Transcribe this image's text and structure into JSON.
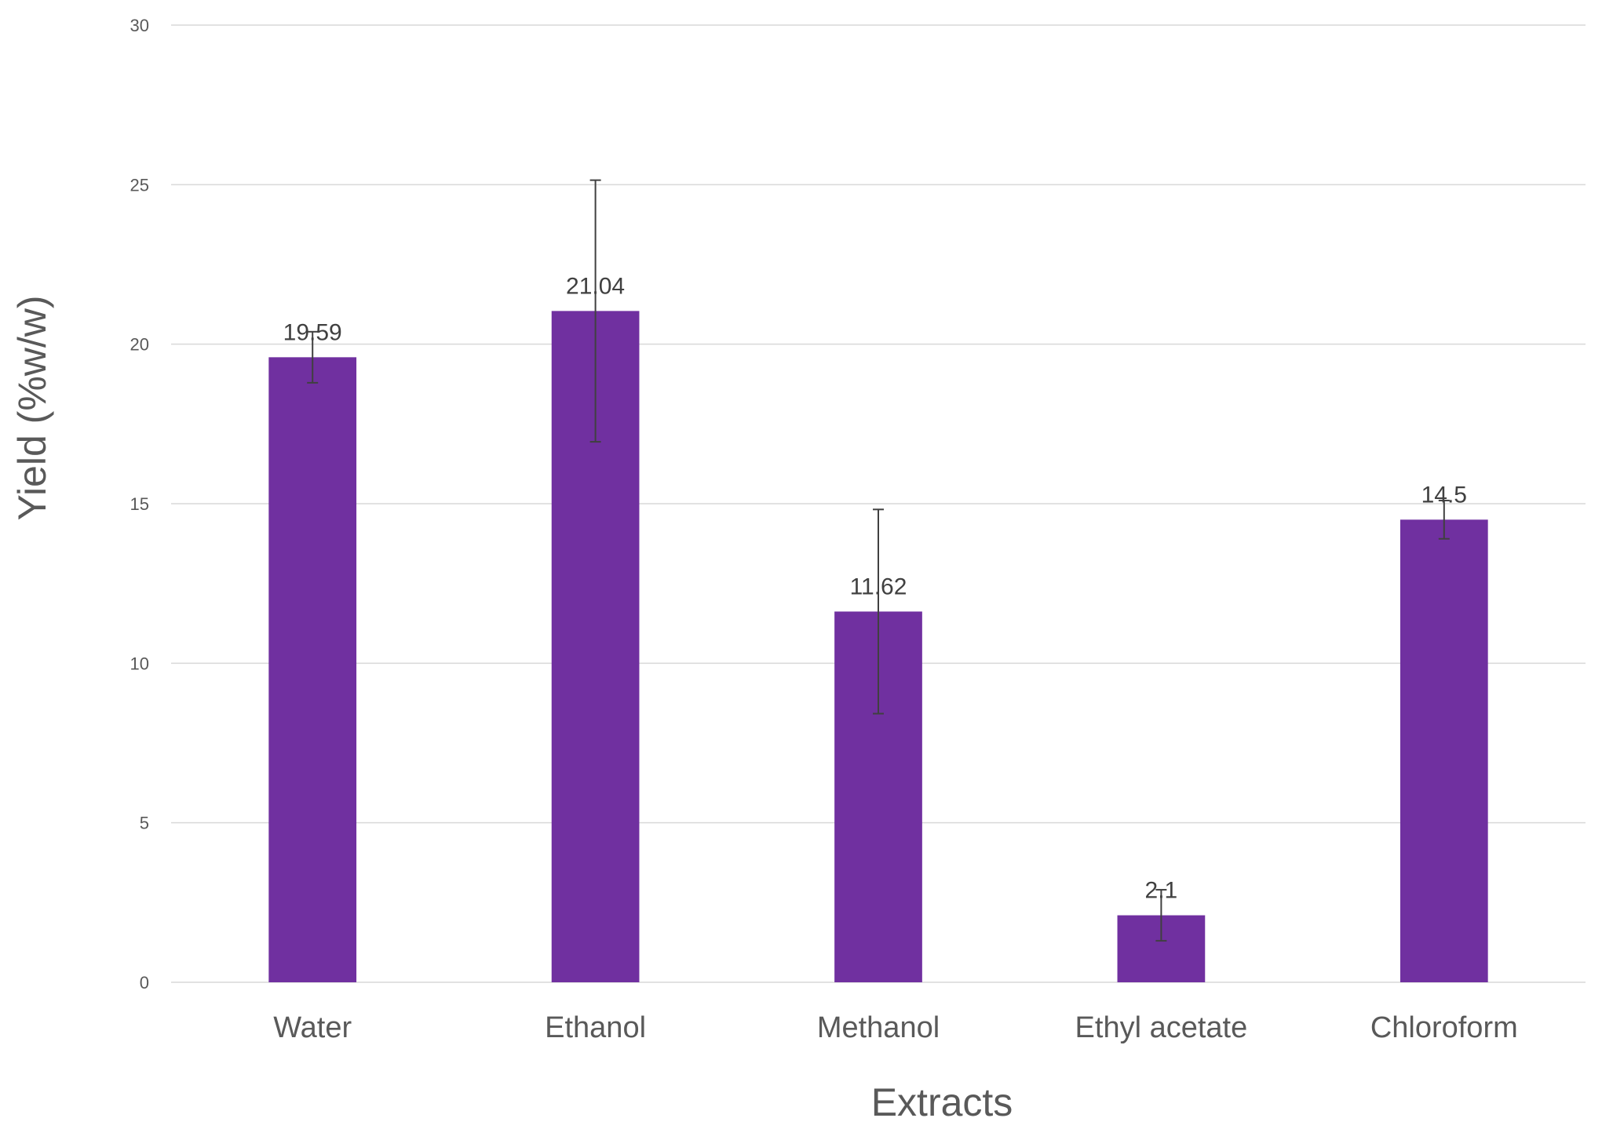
{
  "chart_data": {
    "type": "bar",
    "title": "",
    "xlabel": "Extracts",
    "ylabel": "Yield (%w/w)",
    "categories": [
      "Water",
      "Ethanol",
      "Methanol",
      "Ethyl acetate",
      "Chloroform"
    ],
    "values": [
      19.59,
      21.04,
      11.62,
      2.1,
      14.5
    ],
    "data_labels": [
      "19.59",
      "21.04",
      "11.62",
      "2.1",
      "14.5"
    ],
    "error_bars": [
      0.8,
      4.1,
      3.2,
      0.8,
      0.6
    ],
    "ylim": [
      0,
      30
    ],
    "yticks": [
      0,
      5,
      10,
      15,
      20,
      25,
      30
    ],
    "grid": true,
    "legend": "none",
    "colors": {
      "bar": "#7030a0",
      "grid": "#d9d9d9",
      "error_bar": "#404040"
    }
  }
}
